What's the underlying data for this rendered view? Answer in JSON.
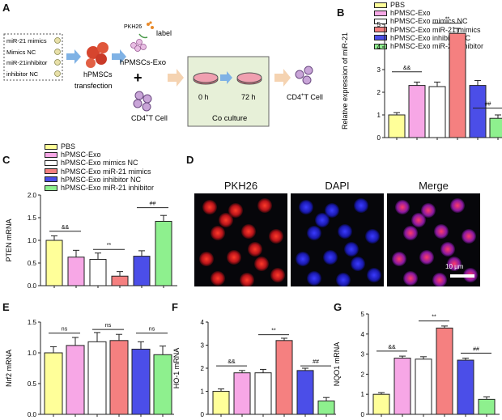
{
  "colors": {
    "PBS": "#ffff99",
    "hPMSC-Exo": "#f7a7e6",
    "hPMSC-Exo mimics NC": "#ffffff",
    "hPMSC-Exo miR-21 mimics": "#f58080",
    "hPMSC-Exo inhibitor NC": "#4b4ee8",
    "hPMSC-Exo miR-21 inhibitor": "#8ef08e",
    "edge": "#222222",
    "arrow": "#7fb2e5",
    "coculture_box": "#e7f0d8"
  },
  "panels": {
    "A": {
      "label": "A",
      "box_items": [
        "miR-21 mimics",
        "Mimics NC",
        "miR-21inhibitor",
        "inhibitor NC"
      ],
      "cells1": "hPMSCs",
      "transfection": "transfection",
      "pkh": "PKH26",
      "label_word": "label",
      "exo": "hPMSCs-Exo",
      "plus": "+",
      "cd4": "CD4",
      "cd4_sup": "+",
      "cd4_tail": "T Cell",
      "t0": "0 h",
      "t72": "72 h",
      "coculture": "Co culture",
      "cd4_out": "CD4",
      "cd4_out_sup": "+",
      "cd4_out_tail": "T Cell"
    },
    "B": {
      "label": "B"
    },
    "C": {
      "label": "C"
    },
    "D": {
      "label": "D",
      "titles": [
        "PKH26",
        "DAPI",
        "Merge"
      ],
      "scale_bar": "10 µm"
    },
    "E": {
      "label": "E"
    },
    "F": {
      "label": "F"
    },
    "G": {
      "label": "G"
    }
  },
  "legend_entries": [
    "PBS",
    "hPMSC-Exo",
    "hPMSC-Exo mimics NC",
    "hPMSC-Exo miR-21 mimics",
    "hPMSC-Exo inhibitor NC",
    "hPMSC-Exo miR-21 inhibitor"
  ],
  "chart_data": [
    {
      "id": "B",
      "type": "bar",
      "ylabel": "Relative expression of miR-21",
      "ylim": [
        0,
        5
      ],
      "yticks": [
        0,
        1,
        2,
        3,
        4,
        5
      ],
      "categories": [
        "PBS",
        "hPMSC-Exo",
        "hPMSC-Exo mimics NC",
        "hPMSC-Exo miR-21 mimics",
        "hPMSC-Exo inhibitor NC",
        "hPMSC-Exo miR-21 inhibitor"
      ],
      "values": [
        1.0,
        2.3,
        2.25,
        4.6,
        2.3,
        0.85
      ],
      "errors": [
        0.1,
        0.15,
        0.2,
        0.22,
        0.22,
        0.15
      ],
      "annotations": [
        {
          "from": 0,
          "to": 1,
          "y": 2.9,
          "text": "&&"
        },
        {
          "from": 2,
          "to": 3,
          "y": 5.05,
          "text": "**"
        },
        {
          "from": 4,
          "to": 5,
          "y": 1.3,
          "text": "##"
        }
      ]
    },
    {
      "id": "C",
      "type": "bar",
      "ylabel": "PTEN mRNA",
      "ylim": [
        0,
        2.0
      ],
      "yticks": [
        0.0,
        0.5,
        1.0,
        1.5,
        2.0
      ],
      "categories": [
        "PBS",
        "hPMSC-Exo",
        "hPMSC-Exo mimics NC",
        "hPMSC-Exo miR-21 mimics",
        "hPMSC-Exo inhibitor NC",
        "hPMSC-Exo miR-21 inhibitor"
      ],
      "values": [
        1.0,
        0.63,
        0.58,
        0.21,
        0.65,
        1.42
      ],
      "errors": [
        0.1,
        0.15,
        0.14,
        0.1,
        0.12,
        0.13
      ],
      "annotations": [
        {
          "from": 0,
          "to": 1,
          "y": 1.2,
          "text": "&&"
        },
        {
          "from": 2,
          "to": 3,
          "y": 0.8,
          "text": "**"
        },
        {
          "from": 4,
          "to": 5,
          "y": 1.72,
          "text": "##"
        }
      ]
    },
    {
      "id": "E",
      "type": "bar",
      "ylabel": "Nrf2 mRNA",
      "ylim": [
        0,
        1.5
      ],
      "yticks": [
        0.0,
        0.5,
        1.0,
        1.5
      ],
      "categories": [
        "PBS",
        "hPMSC-Exo",
        "hPMSC-Exo mimics NC",
        "hPMSC-Exo miR-21 mimics",
        "hPMSC-Exo inhibitor NC",
        "hPMSC-Exo miR-21 inhibitor"
      ],
      "values": [
        1.0,
        1.12,
        1.18,
        1.2,
        1.06,
        0.97
      ],
      "errors": [
        0.1,
        0.13,
        0.15,
        0.1,
        0.12,
        0.14
      ],
      "annotations": [
        {
          "from": 0,
          "to": 1,
          "y": 1.32,
          "text": "ns"
        },
        {
          "from": 2,
          "to": 3,
          "y": 1.38,
          "text": "ns"
        },
        {
          "from": 4,
          "to": 5,
          "y": 1.32,
          "text": "ns"
        }
      ]
    },
    {
      "id": "F",
      "type": "bar",
      "ylabel": "HO-1 mRNA",
      "ylim": [
        0,
        4
      ],
      "yticks": [
        0,
        1,
        2,
        3,
        4
      ],
      "categories": [
        "PBS",
        "hPMSC-Exo",
        "hPMSC-Exo mimics NC",
        "hPMSC-Exo miR-21 mimics",
        "hPMSC-Exo inhibitor NC",
        "hPMSC-Exo miR-21 inhibitor"
      ],
      "values": [
        1.0,
        1.8,
        1.8,
        3.2,
        1.9,
        0.58
      ],
      "errors": [
        0.1,
        0.1,
        0.15,
        0.1,
        0.1,
        0.15
      ],
      "annotations": [
        {
          "from": 0,
          "to": 1,
          "y": 2.1,
          "text": "&&"
        },
        {
          "from": 2,
          "to": 3,
          "y": 3.45,
          "text": "**"
        },
        {
          "from": 4,
          "to": 5,
          "y": 2.1,
          "text": "##"
        }
      ]
    },
    {
      "id": "G",
      "type": "bar",
      "ylabel": "NQO1 mRNA",
      "ylim": [
        0,
        5
      ],
      "yticks": [
        0,
        1,
        2,
        3,
        4,
        5
      ],
      "categories": [
        "PBS",
        "hPMSC-Exo",
        "hPMSC-Exo mimics NC",
        "hPMSC-Exo miR-21 mimics",
        "hPMSC-Exo inhibitor NC",
        "hPMSC-Exo miR-21 inhibitor"
      ],
      "values": [
        1.0,
        2.8,
        2.75,
        4.3,
        2.7,
        0.75
      ],
      "errors": [
        0.08,
        0.1,
        0.12,
        0.1,
        0.1,
        0.12
      ],
      "annotations": [
        {
          "from": 0,
          "to": 1,
          "y": 3.15,
          "text": "&&"
        },
        {
          "from": 2,
          "to": 3,
          "y": 4.65,
          "text": "**"
        },
        {
          "from": 4,
          "to": 5,
          "y": 3.05,
          "text": "##"
        }
      ]
    }
  ]
}
